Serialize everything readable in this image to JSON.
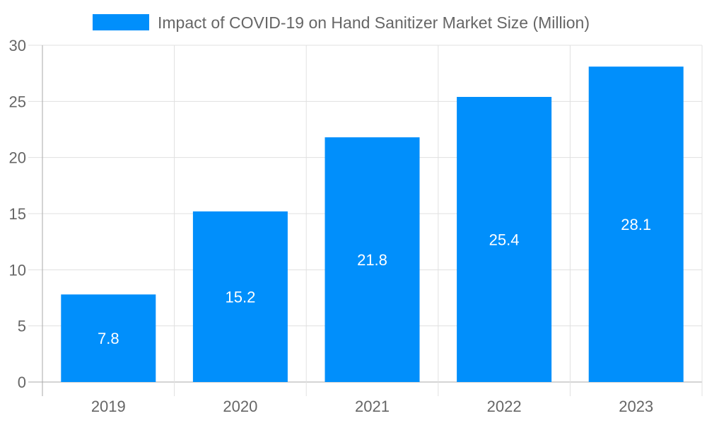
{
  "chart_data": {
    "type": "bar",
    "categories": [
      "2019",
      "2020",
      "2021",
      "2022",
      "2023"
    ],
    "series": [
      {
        "name": "Impact of COVID-19 on Hand Sanitizer Market Size (Million)",
        "values": [
          7.8,
          15.2,
          21.8,
          25.4,
          28.1
        ]
      }
    ],
    "data_labels": [
      "7.8",
      "15.2",
      "21.8",
      "25.4",
      "28.1"
    ],
    "ylim": [
      0,
      30
    ],
    "yticks": [
      "0",
      "5",
      "10",
      "15",
      "20",
      "25",
      "30"
    ],
    "grid": true,
    "legend": "top",
    "colors": {
      "bar": "#018ffb",
      "grid": "#e0e0e0",
      "axis": "#aaaaaa",
      "text": "#666666",
      "label": "#ffffff"
    }
  }
}
